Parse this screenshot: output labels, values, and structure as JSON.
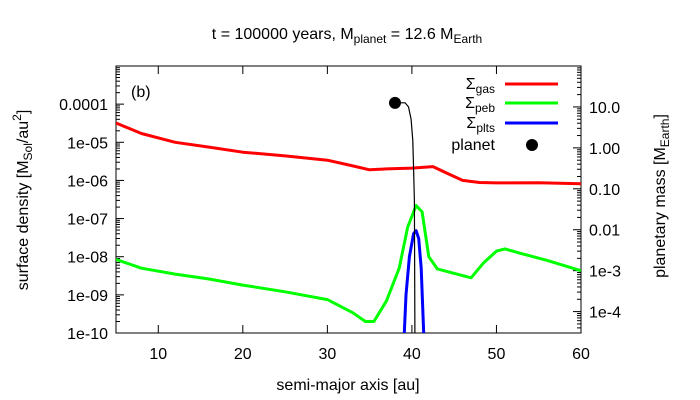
{
  "chart_data": {
    "type": "line",
    "title": {
      "t_label": "t = 100000 years, M",
      "planet_sub": "planet",
      "eq_label": " = 12.6 M",
      "earth_sub": "Earth"
    },
    "panel_label": "(b)",
    "xlabel": "semi-major axis [au]",
    "ylabel_left": {
      "pre": "surface density [M",
      "sub": "Sol",
      "mid": "/au",
      "sup": "2",
      "post": "]"
    },
    "ylabel_right": {
      "pre": "planetary mass [M",
      "sub": "Earth",
      "post": "]"
    },
    "xlim": [
      5,
      60
    ],
    "ylim_left": [
      1e-10,
      0.001
    ],
    "y_scale": "log",
    "ylim_right": [
      3e-05,
      100
    ],
    "x_ticks": [
      10,
      20,
      30,
      40,
      50,
      60
    ],
    "x_tick_labels": [
      "10",
      "20",
      "30",
      "40",
      "50",
      "60"
    ],
    "y_left_ticks": [
      1e-10,
      1e-09,
      1e-08,
      1e-07,
      1e-06,
      1e-05,
      0.0001
    ],
    "y_left_tick_labels": [
      "1e-10",
      "1e-09",
      "1e-08",
      "1e-07",
      "1e-06",
      "1e-05",
      "0.0001"
    ],
    "y_right_ticks": [
      0.0001,
      0.001,
      0.01,
      0.1,
      1,
      10
    ],
    "y_right_tick_labels": [
      "1e-4",
      "1e-3",
      "0.01",
      "0.10",
      "1.00",
      "10.0"
    ],
    "legend_placement": "top-right",
    "series": [
      {
        "name": "Σ",
        "name_sub": "gas",
        "color": "#ff0000",
        "axis": "left",
        "x": [
          5,
          8,
          12,
          16,
          20,
          25,
          30,
          33,
          35,
          37,
          40,
          42.5,
          44,
          46,
          48,
          50,
          55,
          60
        ],
        "y": [
          3.2e-05,
          1.7e-05,
          1e-05,
          7.5e-06,
          5.5e-06,
          4.4e-06,
          3.4e-06,
          2.4e-06,
          1.9e-06,
          2e-06,
          2.1e-06,
          2.3e-06,
          1.6e-06,
          1e-06,
          8.8e-07,
          8.6e-07,
          8.7e-07,
          8.2e-07
        ]
      },
      {
        "name": "Σ",
        "name_sub": "peb",
        "color": "#00ff00",
        "axis": "left",
        "x": [
          5,
          8,
          12,
          16,
          20,
          25,
          30,
          33,
          34.5,
          35.5,
          37,
          38.5,
          39.5,
          40.5,
          41.2,
          42,
          43,
          47,
          48.5,
          50,
          51,
          53,
          56,
          60
        ],
        "y": [
          8.5e-09,
          5e-09,
          3.5e-09,
          2.6e-09,
          1.8e-09,
          1.2e-09,
          7.5e-10,
          3.4e-10,
          2e-10,
          2e-10,
          7e-10,
          5e-09,
          6e-08,
          2.2e-07,
          1.5e-07,
          1e-08,
          4.8e-09,
          2.8e-09,
          7e-09,
          1.4e-08,
          1.6e-08,
          1.2e-08,
          8e-09,
          4.3e-09
        ]
      },
      {
        "name": "Σ",
        "name_sub": "plts",
        "color": "#0000ff",
        "axis": "left",
        "x": [
          39.1,
          39.3,
          39.7,
          40.2,
          40.5,
          40.8,
          41.1,
          41.4
        ],
        "y": [
          1e-10,
          1e-09,
          1e-08,
          4e-08,
          4.8e-08,
          3e-08,
          5e-09,
          1e-10
        ]
      },
      {
        "name": "planet",
        "color": "#000000",
        "axis": "right",
        "type": "scatter",
        "x": [
          38
        ],
        "y": [
          12.6
        ]
      }
    ],
    "planet_track": {
      "axis": "right",
      "x": [
        38,
        39.2,
        39.6,
        39.9,
        40.1,
        40.2,
        40.3,
        40.35
      ],
      "y": [
        12.6,
        12.6,
        10.0,
        5.0,
        1.5,
        0.3,
        0.05,
        3e-05
      ]
    }
  }
}
